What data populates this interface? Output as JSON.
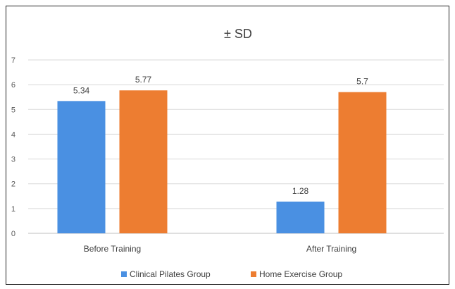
{
  "chart_data": {
    "type": "bar",
    "title": "± SD",
    "xlabel": "",
    "ylabel": "",
    "categories": [
      "Before Training",
      "After Training"
    ],
    "series": [
      {
        "name": "Clinical Pilates Group",
        "values": [
          5.34,
          1.28
        ],
        "labels": [
          "5.34",
          "1.28"
        ],
        "color": "#4a90e2"
      },
      {
        "name": "Home Exercise Group",
        "values": [
          5.77,
          5.7
        ],
        "labels": [
          "5.77",
          "5.7"
        ],
        "color": "#ed7d31"
      }
    ],
    "ylim": [
      0,
      7
    ],
    "yticks": [
      "0",
      "1",
      "2",
      "3",
      "4",
      "5",
      "6",
      "7"
    ],
    "grid": true,
    "legend_position": "bottom"
  }
}
